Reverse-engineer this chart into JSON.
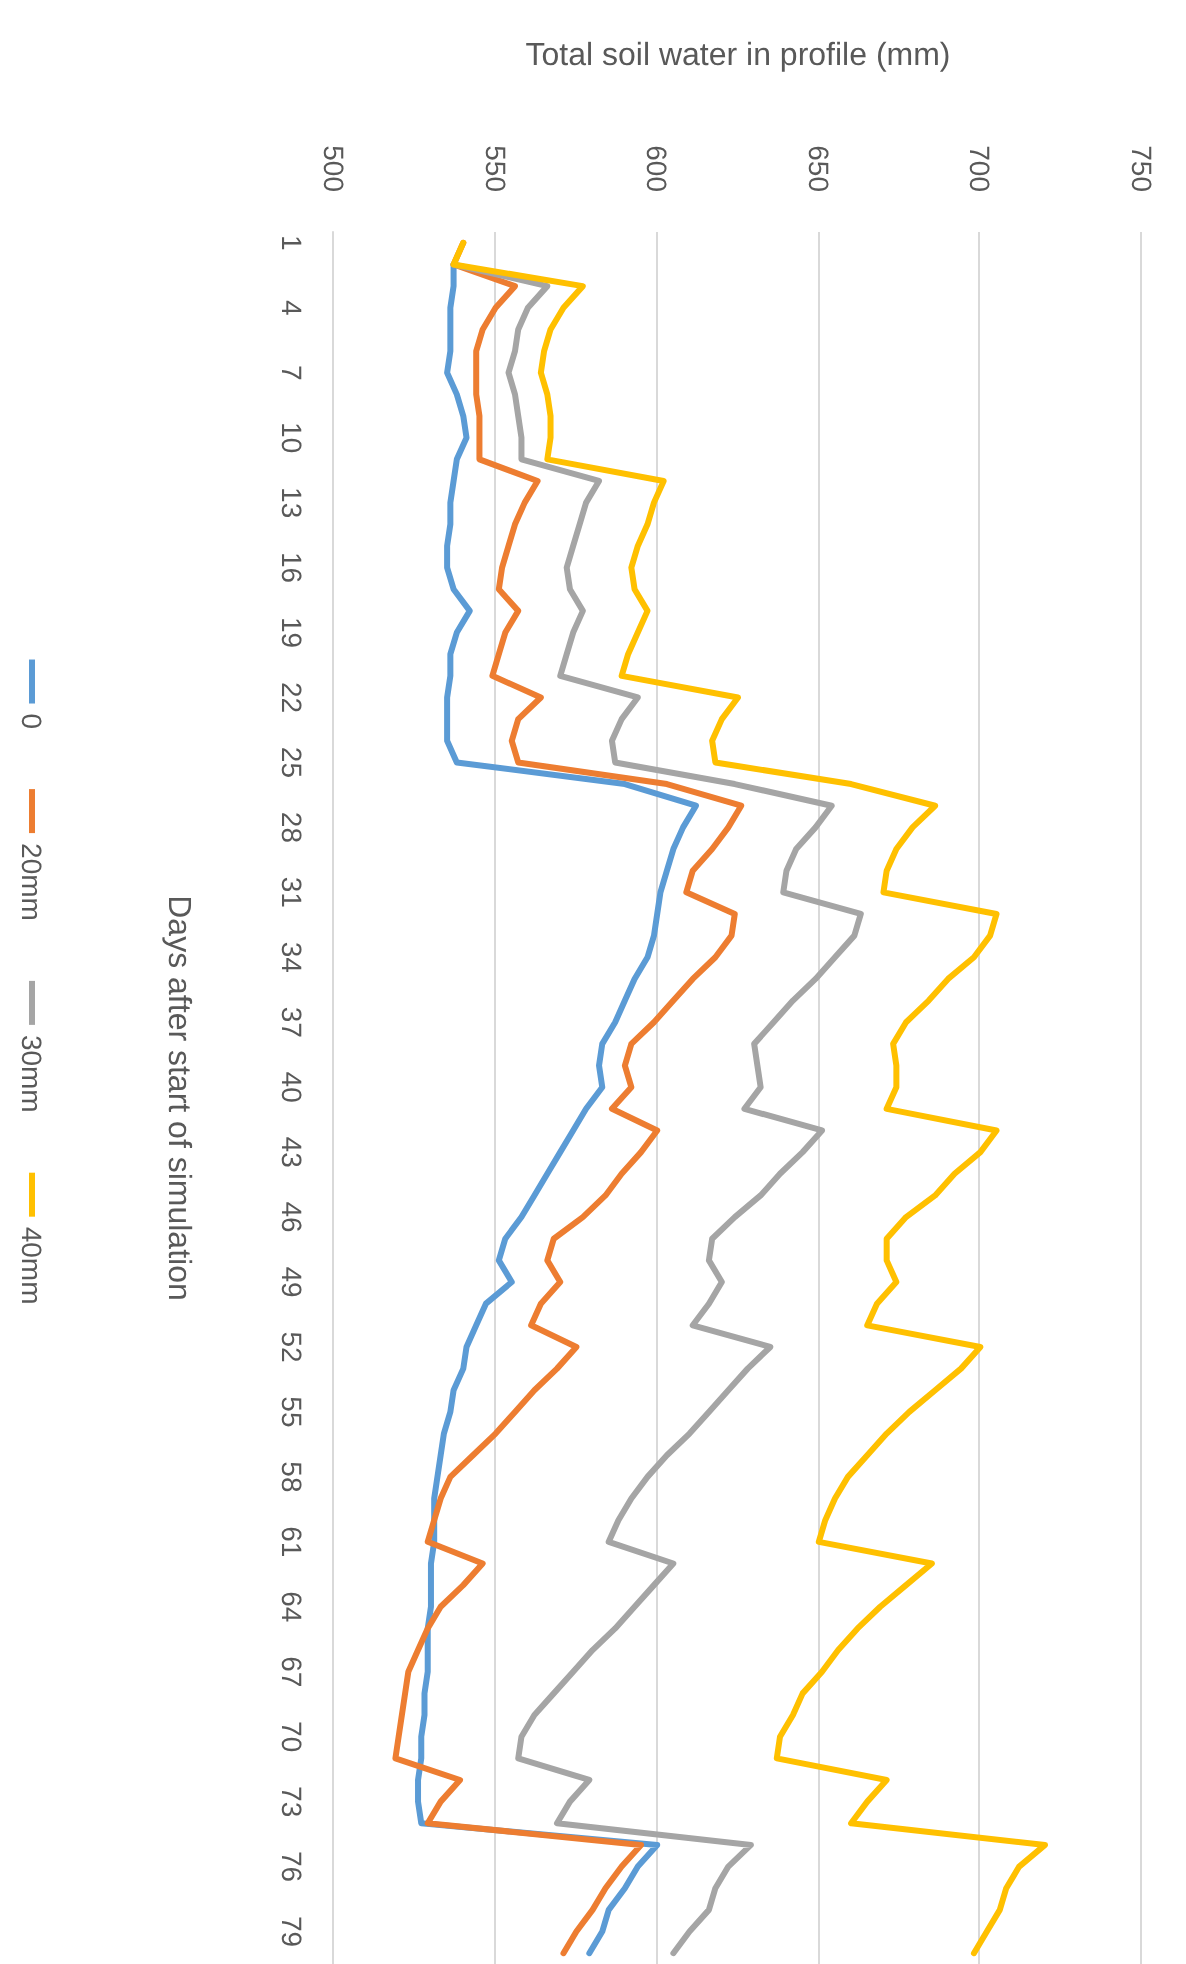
{
  "chart_data": {
    "type": "line",
    "orientation": "horizontal",
    "ylabel": "Days after start of simulation",
    "xlabel": "Total soil water in profile (mm)",
    "categories": [
      "1",
      null,
      null,
      "4",
      null,
      null,
      "7",
      null,
      null,
      "10",
      null,
      null,
      "13",
      null,
      null,
      "16",
      null,
      null,
      "19",
      null,
      null,
      "22",
      null,
      null,
      "25",
      null,
      null,
      "28",
      null,
      null,
      "31",
      null,
      null,
      "34",
      null,
      null,
      "37",
      null,
      null,
      "40",
      null,
      null,
      "43",
      null,
      null,
      "46",
      null,
      null,
      "49",
      null,
      null,
      "52",
      null,
      null,
      "55",
      null,
      null,
      "58",
      null,
      null,
      "61",
      null,
      null,
      "64",
      null,
      null,
      "67",
      null,
      null,
      "70",
      null,
      null,
      "73",
      null,
      null,
      "76",
      null,
      null,
      "79",
      null
    ],
    "series": [
      {
        "name": "0",
        "color": "#5b9bd5",
        "values": [
          null,
          537,
          537,
          536,
          536,
          536,
          535,
          538,
          540,
          541,
          538,
          537,
          536,
          536,
          535,
          535,
          537,
          542,
          538,
          536,
          536,
          535,
          535,
          535,
          538,
          590,
          612,
          608,
          605,
          603,
          601,
          600,
          599,
          597,
          593,
          590,
          587,
          583,
          582,
          583,
          578,
          574,
          570,
          566,
          562,
          558,
          553,
          551,
          555,
          547,
          544,
          541,
          540,
          537,
          536,
          534,
          533,
          532,
          531,
          531,
          531,
          530,
          530,
          530,
          529,
          529,
          529,
          528,
          528,
          527,
          527,
          526,
          526,
          527,
          600,
          594,
          590,
          585,
          583,
          579
        ]
      },
      {
        "name": "20mm",
        "color": "#ed7d31",
        "values": [
          540,
          537,
          556,
          550,
          546,
          544,
          544,
          544,
          545,
          545,
          545,
          563,
          559,
          556,
          554,
          552,
          551,
          557,
          553,
          551,
          549,
          564,
          557,
          555,
          557,
          603,
          626,
          622,
          617,
          611,
          609,
          624,
          623,
          618,
          611,
          605,
          599,
          592,
          590,
          592,
          586,
          600,
          595,
          589,
          584,
          577,
          568,
          566,
          570,
          564,
          561,
          575,
          569,
          562,
          556,
          550,
          543,
          536,
          533,
          531,
          529,
          546,
          540,
          533,
          529,
          526,
          523,
          522,
          521,
          520,
          519,
          539,
          533,
          529,
          595,
          589,
          584,
          580,
          575,
          571
        ]
      },
      {
        "name": "30mm",
        "color": "#a5a5a5",
        "values": [
          null,
          537,
          566,
          560,
          557,
          556,
          554,
          556,
          557,
          558,
          558,
          582,
          578,
          576,
          574,
          572,
          573,
          577,
          574,
          572,
          570,
          594,
          589,
          586,
          587,
          624,
          654,
          649,
          643,
          640,
          639,
          663,
          661,
          655,
          649,
          642,
          636,
          630,
          631,
          632,
          627,
          651,
          645,
          638,
          632,
          624,
          617,
          616,
          620,
          616,
          611,
          635,
          628,
          622,
          616,
          610,
          603,
          597,
          592,
          588,
          585,
          605,
          599,
          593,
          587,
          580,
          574,
          568,
          562,
          558,
          557,
          579,
          573,
          569,
          629,
          622,
          618,
          616,
          610,
          605
        ]
      },
      {
        "name": "40mm",
        "color": "#ffc000",
        "values": [
          540,
          537,
          577,
          571,
          567,
          565,
          564,
          566,
          567,
          567,
          566,
          602,
          599,
          597,
          594,
          592,
          593,
          597,
          594,
          591,
          589,
          625,
          620,
          617,
          618,
          660,
          686,
          679,
          674,
          671,
          670,
          705,
          703,
          698,
          690,
          684,
          677,
          673,
          674,
          674,
          671,
          705,
          700,
          692,
          686,
          677,
          671,
          671,
          674,
          668,
          665,
          700,
          694,
          686,
          678,
          671,
          665,
          659,
          655,
          652,
          650,
          685,
          677,
          669,
          662,
          656,
          651,
          645,
          642,
          638,
          637,
          671,
          665,
          660,
          720,
          712,
          708,
          706,
          702,
          698
        ]
      }
    ],
    "xlim": [
      500,
      750
    ],
    "xticks": [
      500,
      550,
      600,
      650,
      700,
      750
    ],
    "grid": "x",
    "legend": "left",
    "marker": "none",
    "line_style": "solid"
  }
}
